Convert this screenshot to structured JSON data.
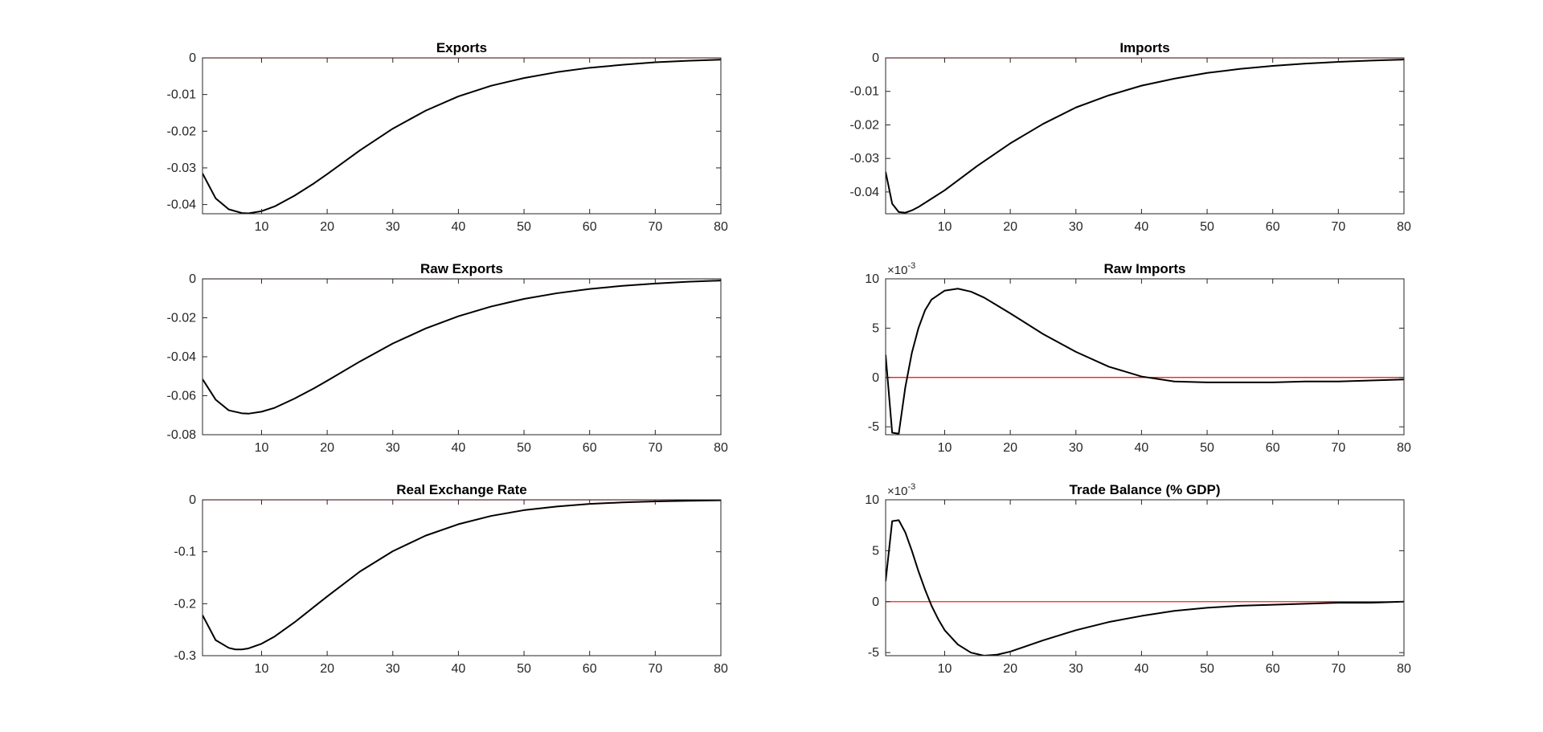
{
  "figure": {
    "background": "#ffffff",
    "zero_line_color": "#ff0000",
    "series_color": "#000000"
  },
  "chart_data": [
    {
      "type": "line",
      "title": "Exports",
      "xlabel": "",
      "ylabel": "",
      "xlim": [
        1,
        80
      ],
      "ylim": [
        -0.0425,
        0
      ],
      "xticks": [
        10,
        20,
        30,
        40,
        50,
        60,
        70,
        80
      ],
      "yticks": [
        0,
        -0.01,
        -0.02,
        -0.03,
        -0.04
      ],
      "ytick_labels": [
        "0",
        "-0.01",
        "-0.02",
        "-0.03",
        "-0.04"
      ],
      "exponent": "",
      "zero_line": 0,
      "grid": false,
      "series": [
        {
          "x": [
            1,
            3,
            5,
            7,
            8,
            10,
            12,
            15,
            18,
            20,
            25,
            30,
            35,
            40,
            45,
            50,
            55,
            60,
            65,
            70,
            75,
            80
          ],
          "values": [
            -0.0315,
            -0.0383,
            -0.0413,
            -0.0423,
            -0.0424,
            -0.0418,
            -0.0405,
            -0.0376,
            -0.0342,
            -0.0317,
            -0.0252,
            -0.0193,
            -0.0144,
            -0.0105,
            -0.0076,
            -0.0055,
            -0.0039,
            -0.0027,
            -0.0019,
            -0.0012,
            -0.0008,
            -0.0005
          ]
        }
      ]
    },
    {
      "type": "line",
      "title": "Imports",
      "xlabel": "",
      "ylabel": "",
      "xlim": [
        1,
        80
      ],
      "ylim": [
        -0.0465,
        0
      ],
      "xticks": [
        10,
        20,
        30,
        40,
        50,
        60,
        70,
        80
      ],
      "yticks": [
        0,
        -0.01,
        -0.02,
        -0.03,
        -0.04
      ],
      "ytick_labels": [
        "0",
        "-0.01",
        "-0.02",
        "-0.03",
        "-0.04"
      ],
      "exponent": "",
      "zero_line": 0,
      "grid": false,
      "series": [
        {
          "x": [
            1,
            2,
            3,
            4,
            5,
            6,
            8,
            10,
            15,
            20,
            25,
            30,
            35,
            40,
            45,
            50,
            55,
            60,
            65,
            70,
            75,
            80
          ],
          "values": [
            -0.034,
            -0.0435,
            -0.046,
            -0.0462,
            -0.0455,
            -0.0445,
            -0.042,
            -0.0395,
            -0.0322,
            -0.0255,
            -0.0197,
            -0.0148,
            -0.0112,
            -0.0083,
            -0.0062,
            -0.0045,
            -0.0033,
            -0.0024,
            -0.0017,
            -0.0012,
            -0.0008,
            -0.0005
          ]
        }
      ]
    },
    {
      "type": "line",
      "title": "Raw Exports",
      "xlabel": "",
      "ylabel": "",
      "xlim": [
        1,
        80
      ],
      "ylim": [
        -0.08,
        0
      ],
      "xticks": [
        10,
        20,
        30,
        40,
        50,
        60,
        70,
        80
      ],
      "yticks": [
        0,
        -0.02,
        -0.04,
        -0.06,
        -0.08
      ],
      "ytick_labels": [
        "0",
        "-0.02",
        "-0.04",
        "-0.06",
        "-0.08"
      ],
      "exponent": "",
      "zero_line": 0,
      "grid": false,
      "series": [
        {
          "x": [
            1,
            3,
            5,
            7,
            8,
            10,
            12,
            15,
            18,
            20,
            25,
            30,
            35,
            40,
            45,
            50,
            55,
            60,
            65,
            70,
            75,
            80
          ],
          "values": [
            -0.0515,
            -0.062,
            -0.0675,
            -0.069,
            -0.0692,
            -0.0682,
            -0.0662,
            -0.0615,
            -0.0562,
            -0.0523,
            -0.0424,
            -0.0332,
            -0.0255,
            -0.0192,
            -0.0142,
            -0.0103,
            -0.0074,
            -0.0052,
            -0.0036,
            -0.0024,
            -0.0015,
            -0.0009
          ]
        }
      ]
    },
    {
      "type": "line",
      "title": "Raw Imports",
      "xlabel": "",
      "ylabel": "",
      "xlim": [
        1,
        80
      ],
      "ylim": [
        -5.8,
        10
      ],
      "xticks": [
        10,
        20,
        30,
        40,
        50,
        60,
        70,
        80
      ],
      "yticks": [
        10,
        5,
        0,
        -5
      ],
      "ytick_labels": [
        "10",
        "5",
        "0",
        "-5"
      ],
      "exponent": "×10-3",
      "zero_line": 0,
      "grid": false,
      "series": [
        {
          "x": [
            1,
            2,
            3,
            4,
            5,
            6,
            7,
            8,
            10,
            12,
            14,
            16,
            18,
            20,
            25,
            30,
            35,
            40,
            45,
            50,
            55,
            60,
            65,
            70,
            75,
            80
          ],
          "values": [
            2.3,
            -5.6,
            -5.7,
            -1.0,
            2.5,
            5.0,
            6.8,
            7.9,
            8.8,
            9.0,
            8.7,
            8.1,
            7.3,
            6.5,
            4.4,
            2.6,
            1.1,
            0.1,
            -0.4,
            -0.5,
            -0.5,
            -0.5,
            -0.4,
            -0.4,
            -0.3,
            -0.2
          ]
        }
      ]
    },
    {
      "type": "line",
      "title": "Real Exchange Rate",
      "xlabel": "",
      "ylabel": "",
      "xlim": [
        1,
        80
      ],
      "ylim": [
        -0.3,
        0
      ],
      "xticks": [
        10,
        20,
        30,
        40,
        50,
        60,
        70,
        80
      ],
      "yticks": [
        0,
        -0.1,
        -0.2,
        -0.3
      ],
      "ytick_labels": [
        "0",
        "-0.1",
        "-0.2",
        "-0.3"
      ],
      "exponent": "",
      "zero_line": 0,
      "grid": false,
      "series": [
        {
          "x": [
            1,
            3,
            5,
            6,
            7,
            8,
            10,
            12,
            15,
            18,
            20,
            25,
            30,
            35,
            40,
            45,
            50,
            55,
            60,
            65,
            70,
            75,
            80
          ],
          "values": [
            -0.222,
            -0.27,
            -0.285,
            -0.288,
            -0.288,
            -0.286,
            -0.277,
            -0.263,
            -0.236,
            -0.206,
            -0.186,
            -0.138,
            -0.099,
            -0.069,
            -0.047,
            -0.031,
            -0.02,
            -0.013,
            -0.008,
            -0.005,
            -0.003,
            -0.002,
            -0.001
          ]
        }
      ]
    },
    {
      "type": "line",
      "title": "Trade Balance (% GDP)",
      "xlabel": "",
      "ylabel": "",
      "xlim": [
        1,
        80
      ],
      "ylim": [
        -5.3,
        10
      ],
      "xticks": [
        10,
        20,
        30,
        40,
        50,
        60,
        70,
        80
      ],
      "yticks": [
        10,
        5,
        0,
        -5
      ],
      "ytick_labels": [
        "10",
        "5",
        "0",
        "-5"
      ],
      "exponent": "×10-3",
      "zero_line": 0,
      "grid": false,
      "series": [
        {
          "x": [
            1,
            2,
            3,
            4,
            5,
            6,
            7,
            8,
            9,
            10,
            12,
            14,
            16,
            18,
            20,
            25,
            30,
            35,
            40,
            45,
            50,
            55,
            60,
            65,
            70,
            75,
            80
          ],
          "values": [
            2.0,
            7.9,
            8.0,
            6.8,
            5.0,
            3.0,
            1.2,
            -0.4,
            -1.7,
            -2.8,
            -4.2,
            -5.0,
            -5.3,
            -5.2,
            -4.9,
            -3.8,
            -2.8,
            -2.0,
            -1.4,
            -0.9,
            -0.6,
            -0.4,
            -0.3,
            -0.2,
            -0.1,
            -0.1,
            0.0
          ]
        }
      ]
    }
  ]
}
